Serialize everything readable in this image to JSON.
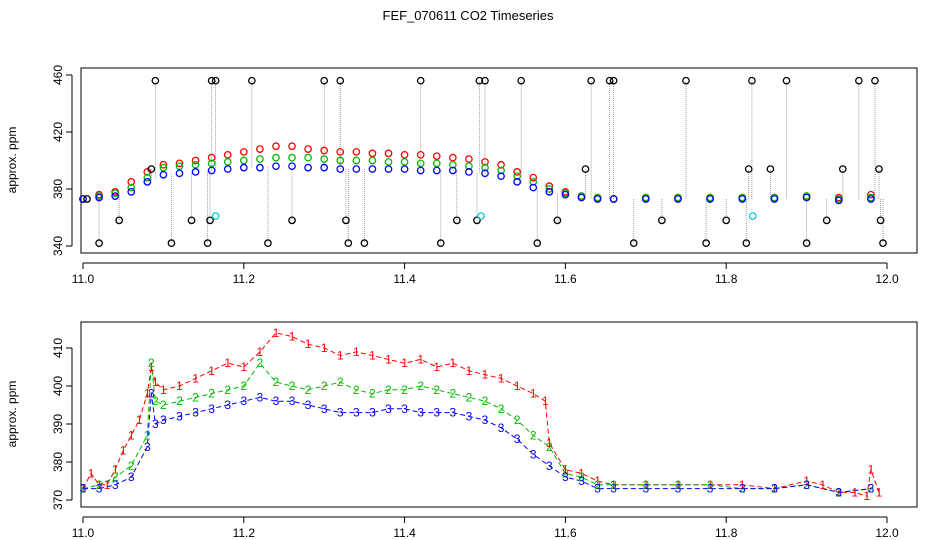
{
  "title": "FEF_070611  CO2 Timeseries",
  "colors": {
    "series1": "#ff0000",
    "series2": "#00bb00",
    "series3": "#0000ff",
    "outlier": "#000000",
    "flag": "#00cccc",
    "connector": "#888888"
  },
  "chart_data": [
    {
      "type": "scatter",
      "title": "",
      "ylabel": "approx. ppm",
      "xlim": [
        11.0,
        12.0
      ],
      "ylim": [
        340,
        460
      ],
      "x_ticks": [
        "11.0",
        "11.2",
        "11.4",
        "11.6",
        "11.8",
        "12.0"
      ],
      "x_tick_values": [
        11.0,
        11.2,
        11.4,
        11.6,
        11.8,
        12.0
      ],
      "y_ticks": [
        "340",
        "380",
        "420",
        "460"
      ],
      "y_tick_values": [
        340,
        380,
        420,
        460
      ],
      "marker": "open circle",
      "series": [
        {
          "name": "1",
          "color_key": "series1",
          "x": [
            11.0,
            11.02,
            11.04,
            11.06,
            11.08,
            11.1,
            11.12,
            11.14,
            11.16,
            11.18,
            11.2,
            11.22,
            11.24,
            11.26,
            11.28,
            11.3,
            11.32,
            11.34,
            11.36,
            11.38,
            11.4,
            11.42,
            11.44,
            11.46,
            11.48,
            11.5,
            11.52,
            11.54,
            11.56,
            11.58,
            11.6,
            11.62,
            11.64,
            11.66,
            11.7,
            11.74,
            11.78,
            11.82,
            11.86,
            11.9,
            11.94,
            11.98
          ],
          "values": [
            373,
            376,
            378,
            385,
            392,
            397,
            398,
            400,
            402,
            404,
            406,
            408,
            410,
            410,
            408,
            407,
            406,
            406,
            405,
            405,
            404,
            404,
            403,
            402,
            401,
            399,
            397,
            392,
            388,
            382,
            378,
            375,
            374,
            373,
            374,
            374,
            374,
            374,
            374,
            375,
            374,
            376
          ]
        },
        {
          "name": "2",
          "color_key": "series2",
          "x": [
            11.0,
            11.02,
            11.04,
            11.06,
            11.08,
            11.1,
            11.12,
            11.14,
            11.16,
            11.18,
            11.2,
            11.22,
            11.24,
            11.26,
            11.28,
            11.3,
            11.32,
            11.34,
            11.36,
            11.38,
            11.4,
            11.42,
            11.44,
            11.46,
            11.48,
            11.5,
            11.52,
            11.54,
            11.56,
            11.58,
            11.6,
            11.62,
            11.64,
            11.66,
            11.7,
            11.74,
            11.78,
            11.82,
            11.86,
            11.9,
            11.94,
            11.98
          ],
          "values": [
            373,
            375,
            377,
            381,
            388,
            395,
            396,
            397,
            398,
            399,
            400,
            401,
            402,
            402,
            402,
            401,
            400,
            400,
            400,
            399,
            399,
            398,
            398,
            397,
            396,
            395,
            393,
            389,
            385,
            380,
            377,
            375,
            374,
            373,
            374,
            374,
            374,
            374,
            374,
            375,
            373,
            374
          ]
        },
        {
          "name": "3",
          "color_key": "series3",
          "x": [
            11.0,
            11.02,
            11.04,
            11.06,
            11.08,
            11.1,
            11.12,
            11.14,
            11.16,
            11.18,
            11.2,
            11.22,
            11.24,
            11.26,
            11.28,
            11.3,
            11.32,
            11.34,
            11.36,
            11.38,
            11.4,
            11.42,
            11.44,
            11.46,
            11.48,
            11.5,
            11.52,
            11.54,
            11.56,
            11.58,
            11.6,
            11.62,
            11.64,
            11.66,
            11.7,
            11.74,
            11.78,
            11.82,
            11.86,
            11.9,
            11.94,
            11.98
          ],
          "values": [
            373,
            374,
            375,
            378,
            385,
            390,
            391,
            392,
            393,
            394,
            395,
            395,
            396,
            396,
            395,
            395,
            394,
            394,
            394,
            394,
            394,
            393,
            393,
            393,
            392,
            391,
            389,
            385,
            381,
            378,
            376,
            374,
            373,
            373,
            373,
            373,
            373,
            373,
            373,
            374,
            372,
            373
          ]
        },
        {
          "name": "outliers",
          "color_key": "outlier",
          "x": [
            11.005,
            11.02,
            11.045,
            11.085,
            11.09,
            11.11,
            11.135,
            11.155,
            11.158,
            11.16,
            11.165,
            11.21,
            11.23,
            11.26,
            11.3,
            11.32,
            11.327,
            11.33,
            11.35,
            11.42,
            11.445,
            11.465,
            11.49,
            11.493,
            11.5,
            11.545,
            11.565,
            11.59,
            11.625,
            11.632,
            11.655,
            11.66,
            11.685,
            11.72,
            11.75,
            11.775,
            11.8,
            11.825,
            11.828,
            11.832,
            11.855,
            11.875,
            11.9,
            11.925,
            11.945,
            11.965,
            11.985,
            11.99,
            11.992,
            11.995
          ],
          "values": [
            373,
            342,
            358,
            394,
            456,
            342,
            358,
            342,
            358,
            456,
            456,
            456,
            342,
            358,
            456,
            456,
            358,
            342,
            342,
            456,
            342,
            358,
            358,
            456,
            456,
            456,
            342,
            358,
            394,
            456,
            456,
            456,
            342,
            358,
            456,
            342,
            358,
            342,
            394,
            456,
            394,
            456,
            342,
            358,
            394,
            456,
            456,
            394,
            358,
            342
          ]
        },
        {
          "name": "flagged",
          "color_key": "flag",
          "x": [
            11.165,
            11.495,
            11.833
          ],
          "values": [
            361,
            361,
            361
          ]
        }
      ]
    },
    {
      "type": "line",
      "title": "",
      "ylabel": "approx. ppm",
      "xlim": [
        11.0,
        12.0
      ],
      "ylim": [
        370,
        415
      ],
      "x_ticks": [
        "11.0",
        "11.2",
        "11.4",
        "11.6",
        "11.8",
        "12.0"
      ],
      "x_tick_values": [
        11.0,
        11.2,
        11.4,
        11.6,
        11.8,
        12.0
      ],
      "y_ticks": [
        "370",
        "380",
        "390",
        "400",
        "410"
      ],
      "y_tick_values": [
        370,
        380,
        390,
        400,
        410
      ],
      "marker": "series number glyph",
      "series": [
        {
          "name": "1",
          "label": "1",
          "color_key": "series1",
          "x": [
            11.0,
            11.01,
            11.02,
            11.03,
            11.04,
            11.05,
            11.06,
            11.07,
            11.08,
            11.085,
            11.09,
            11.1,
            11.12,
            11.14,
            11.16,
            11.18,
            11.2,
            11.22,
            11.24,
            11.26,
            11.28,
            11.3,
            11.32,
            11.34,
            11.36,
            11.38,
            11.4,
            11.42,
            11.44,
            11.46,
            11.48,
            11.5,
            11.52,
            11.54,
            11.56,
            11.575,
            11.58,
            11.6,
            11.62,
            11.64,
            11.66,
            11.7,
            11.74,
            11.78,
            11.82,
            11.86,
            11.9,
            11.92,
            11.94,
            11.96,
            11.975,
            11.98,
            11.99
          ],
          "values": [
            373,
            377,
            374,
            374,
            378,
            383,
            387,
            391,
            398,
            405,
            401,
            399,
            400,
            402,
            404,
            406,
            405,
            409,
            414,
            413,
            411,
            410,
            408,
            409,
            408,
            407,
            406,
            407,
            405,
            406,
            404,
            403,
            402,
            400,
            398,
            396,
            385,
            378,
            377,
            375,
            374,
            374,
            374,
            374,
            374,
            373,
            375,
            374,
            372,
            372,
            371,
            378,
            372
          ]
        },
        {
          "name": "2",
          "label": "2",
          "color_key": "series2",
          "x": [
            11.0,
            11.02,
            11.04,
            11.06,
            11.08,
            11.085,
            11.09,
            11.1,
            11.12,
            11.14,
            11.16,
            11.18,
            11.2,
            11.22,
            11.24,
            11.26,
            11.28,
            11.3,
            11.32,
            11.34,
            11.36,
            11.38,
            11.4,
            11.42,
            11.44,
            11.46,
            11.48,
            11.5,
            11.52,
            11.54,
            11.56,
            11.58,
            11.6,
            11.62,
            11.64,
            11.66,
            11.7,
            11.74,
            11.78,
            11.82,
            11.86,
            11.9,
            11.94,
            11.98
          ],
          "values": [
            373,
            374,
            376,
            379,
            387,
            406,
            396,
            395,
            396,
            397,
            398,
            399,
            400,
            406,
            401,
            400,
            399,
            400,
            401,
            399,
            398,
            399,
            399,
            400,
            399,
            398,
            397,
            396,
            394,
            391,
            387,
            384,
            377,
            376,
            374,
            374,
            374,
            374,
            374,
            373,
            373,
            374,
            372,
            373
          ]
        },
        {
          "name": "3",
          "label": "3",
          "color_key": "series3",
          "x": [
            11.0,
            11.02,
            11.04,
            11.06,
            11.08,
            11.085,
            11.09,
            11.1,
            11.12,
            11.14,
            11.16,
            11.18,
            11.2,
            11.22,
            11.24,
            11.26,
            11.28,
            11.3,
            11.32,
            11.34,
            11.36,
            11.38,
            11.4,
            11.42,
            11.44,
            11.46,
            11.48,
            11.5,
            11.52,
            11.54,
            11.56,
            11.58,
            11.6,
            11.62,
            11.64,
            11.66,
            11.7,
            11.74,
            11.78,
            11.82,
            11.86,
            11.9,
            11.94,
            11.98
          ],
          "values": [
            373,
            373,
            374,
            376,
            384,
            398,
            390,
            391,
            392,
            393,
            394,
            395,
            396,
            397,
            396,
            396,
            395,
            394,
            393,
            393,
            393,
            394,
            394,
            393,
            393,
            393,
            392,
            391,
            389,
            386,
            382,
            379,
            376,
            375,
            373,
            373,
            373,
            373,
            373,
            373,
            373,
            374,
            372,
            373
          ]
        }
      ]
    }
  ]
}
